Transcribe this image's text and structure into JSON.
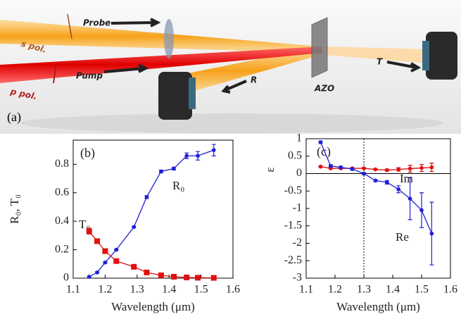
{
  "diagram": {
    "panel": "(a)",
    "probe": "Probe",
    "s_pol": "s pol.",
    "p_pol": "p pol.",
    "pump": "Pump",
    "reflected": "R",
    "sample": "AZO",
    "transmitted": "T"
  },
  "chart_data": [
    {
      "type": "line",
      "panel": "(b)",
      "xlabel": "Wavelength (μm)",
      "ylabel": "R₀, T₀",
      "xlim": [
        1.1,
        1.6
      ],
      "xticks": [
        1.1,
        1.2,
        1.3,
        1.4,
        1.5,
        1.6
      ],
      "ylim": [
        0,
        0.97
      ],
      "yticks": [
        0,
        0.2,
        0.4,
        0.6,
        0.8
      ],
      "series": [
        {
          "name": "R₀",
          "color": "#1f1fd6",
          "marker": "circle",
          "x": [
            1.15,
            1.175,
            1.2,
            1.235,
            1.29,
            1.33,
            1.375,
            1.415,
            1.455,
            1.49,
            1.54
          ],
          "values": [
            0.01,
            0.04,
            0.11,
            0.2,
            0.36,
            0.57,
            0.75,
            0.77,
            0.86,
            0.86,
            0.9
          ],
          "errors": [
            0.005,
            0.005,
            0.005,
            0.005,
            0.005,
            0.01,
            0.01,
            0.01,
            0.02,
            0.03,
            0.04
          ]
        },
        {
          "name": "T₀",
          "color": "#e01010",
          "marker": "square",
          "x": [
            1.15,
            1.175,
            1.2,
            1.235,
            1.29,
            1.33,
            1.375,
            1.415,
            1.455,
            1.49,
            1.54
          ],
          "values": [
            0.33,
            0.26,
            0.19,
            0.12,
            0.08,
            0.04,
            0.02,
            0.01,
            0.005,
            0.003,
            0.002
          ],
          "errors": [
            0.02,
            0.01,
            0.01,
            0.005,
            0.005,
            0.005,
            0.005,
            0.005,
            0.005,
            0.005,
            0.005
          ]
        }
      ]
    },
    {
      "type": "line",
      "panel": "(c)",
      "xlabel": "Wavelength (μm)",
      "ylabel": "ε",
      "xlim": [
        1.1,
        1.6
      ],
      "xticks": [
        1.1,
        1.2,
        1.3,
        1.4,
        1.5,
        1.6
      ],
      "ylim": [
        -3,
        1
      ],
      "yticks": [
        1,
        0.5,
        0,
        -0.5,
        -1,
        -1.5,
        -2,
        -2.5,
        -3
      ],
      "vline": 1.3,
      "hline": 0,
      "series": [
        {
          "name": "Im",
          "color": "#e01010",
          "marker": "circle",
          "x": [
            1.15,
            1.185,
            1.22,
            1.26,
            1.3,
            1.34,
            1.38,
            1.42,
            1.46,
            1.5,
            1.535
          ],
          "values": [
            0.2,
            0.15,
            0.15,
            0.15,
            0.15,
            0.12,
            0.1,
            0.12,
            0.14,
            0.16,
            0.18
          ],
          "errors": [
            0.02,
            0.02,
            0.02,
            0.02,
            0.02,
            0.02,
            0.03,
            0.05,
            0.1,
            0.1,
            0.12
          ]
        },
        {
          "name": "Re",
          "color": "#1f1fd6",
          "marker": "circle",
          "x": [
            1.15,
            1.185,
            1.22,
            1.26,
            1.3,
            1.34,
            1.38,
            1.42,
            1.46,
            1.5,
            1.535
          ],
          "values": [
            0.9,
            0.22,
            0.18,
            0.13,
            0.0,
            -0.2,
            -0.25,
            -0.45,
            -0.72,
            -1.05,
            -1.72
          ],
          "errors": [
            0.03,
            0.03,
            0.03,
            0.03,
            0.03,
            0.03,
            0.05,
            0.1,
            0.6,
            0.5,
            0.9
          ]
        }
      ]
    }
  ]
}
